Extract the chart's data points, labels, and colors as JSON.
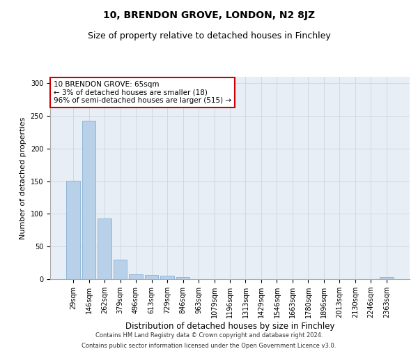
{
  "title": "10, BRENDON GROVE, LONDON, N2 8JZ",
  "subtitle": "Size of property relative to detached houses in Finchley",
  "xlabel": "Distribution of detached houses by size in Finchley",
  "ylabel": "Number of detached properties",
  "categories": [
    "29sqm",
    "146sqm",
    "262sqm",
    "379sqm",
    "496sqm",
    "613sqm",
    "729sqm",
    "846sqm",
    "963sqm",
    "1079sqm",
    "1196sqm",
    "1313sqm",
    "1429sqm",
    "1546sqm",
    "1663sqm",
    "1780sqm",
    "1896sqm",
    "2013sqm",
    "2130sqm",
    "2246sqm",
    "2363sqm"
  ],
  "values": [
    151,
    243,
    93,
    30,
    8,
    6,
    5,
    3,
    0,
    0,
    0,
    0,
    0,
    0,
    0,
    0,
    0,
    0,
    0,
    0,
    3
  ],
  "bar_color": "#b8d0e8",
  "bar_edge_color": "#7aaad0",
  "annotation_line1": "10 BRENDON GROVE: 65sqm",
  "annotation_line2": "← 3% of detached houses are smaller (18)",
  "annotation_line3": "96% of semi-detached houses are larger (515) →",
  "annotation_box_color": "#ffffff",
  "annotation_box_edge_color": "#cc0000",
  "ylim": [
    0,
    310
  ],
  "yticks": [
    0,
    50,
    100,
    150,
    200,
    250,
    300
  ],
  "grid_color": "#d0d8e4",
  "bg_color": "#e8eef5",
  "footer_line1": "Contains HM Land Registry data © Crown copyright and database right 2024.",
  "footer_line2": "Contains public sector information licensed under the Open Government Licence v3.0.",
  "title_fontsize": 10,
  "subtitle_fontsize": 9,
  "xlabel_fontsize": 8.5,
  "ylabel_fontsize": 8,
  "tick_fontsize": 7,
  "annot_fontsize": 7.5,
  "footer_fontsize": 6
}
